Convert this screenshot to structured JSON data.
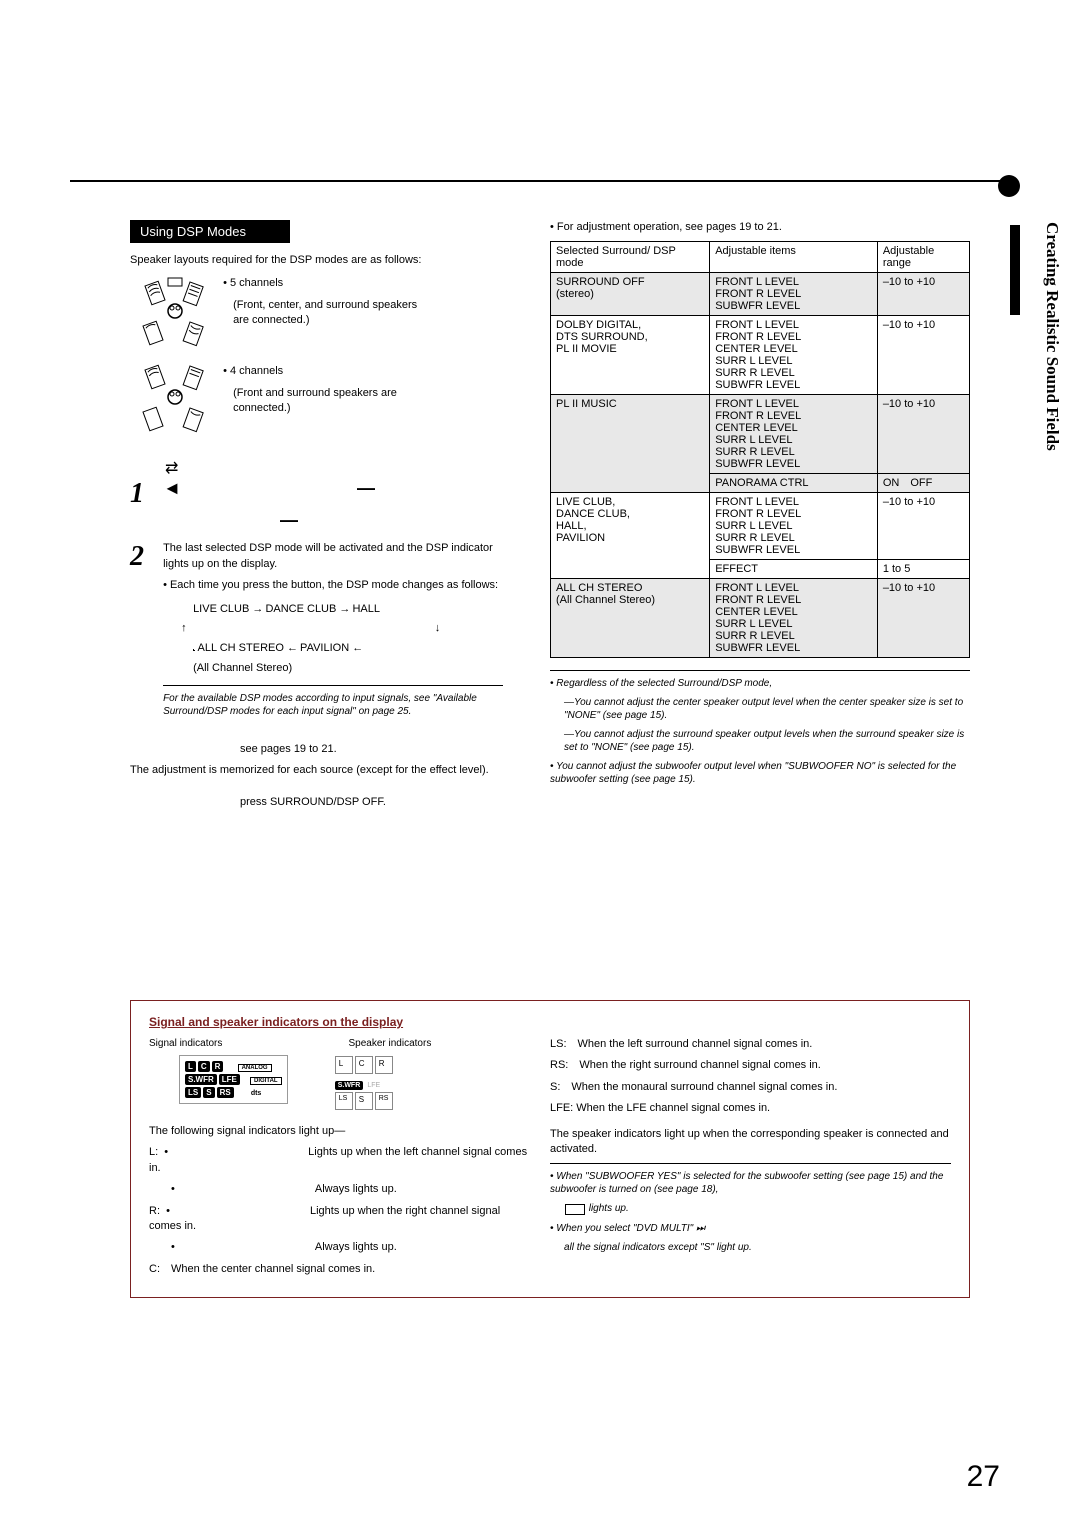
{
  "side_tab": "Creating Realistic Sound Fields",
  "page_number": "27",
  "section_title": "Using DSP Modes",
  "intro": "Speaker layouts required for the DSP modes are as follows:",
  "layout5_title": "• 5 channels",
  "layout5_desc": "(Front, center, and surround speakers are connected.)",
  "layout4_title": "• 4 channels",
  "layout4_desc": "(Front and surround speakers are connected.)",
  "step1_num": "1",
  "step1_arrow": "◄",
  "step1_dash": "—",
  "step2_num": "2",
  "step2_p1": "The last selected DSP mode will be activated and the DSP indicator lights up on the display.",
  "step2_p2": "• Each time you press the button, the DSP mode changes as follows:",
  "flow_line1a": "LIVE CLUB",
  "flow_line1b": "DANCE CLUB",
  "flow_line1c": "HALL",
  "flow_line2a": "ALL CH STEREO",
  "flow_line2b": "PAVILION",
  "flow_line2_sub": "(All Channel Stereo)",
  "note1": "For the available DSP modes according to input signals, see \"Available Surround/DSP modes for each input signal\" on page 25.",
  "adjust_line": "see pages 19 to 21.",
  "adjust_p": "The adjustment is memorized for each source (except for the effect level).",
  "cancel_p": "press SURROUND/DSP OFF.",
  "right_intro": "• For adjustment operation, see pages 19 to 21.",
  "th1": "Selected Surround/ DSP mode",
  "th2": "Adjustable items",
  "th3": "Adjustable range",
  "rows": [
    {
      "m": "SURROUND OFF\n(stereo)",
      "i": "FRONT L LEVEL\nFRONT R LEVEL\nSUBWFR LEVEL",
      "r": "–10 to +10",
      "s": true
    },
    {
      "m": "DOLBY DIGITAL,\nDTS SURROUND,\nPL II MOVIE",
      "i": "FRONT L LEVEL\nFRONT R LEVEL\nCENTER LEVEL\nSURR L LEVEL\nSURR R LEVEL\nSUBWFR LEVEL",
      "r": "–10 to +10",
      "s": false
    },
    {
      "m": "PL II MUSIC",
      "i": "FRONT L LEVEL\nFRONT R LEVEL\nCENTER LEVEL\nSURR L LEVEL\nSURR R LEVEL\nSUBWFR LEVEL",
      "r": "–10 to +10",
      "s": true
    },
    {
      "m": "",
      "i": "PANORAMA CTRL",
      "r": "ON OFF",
      "s": true,
      "bt": true
    },
    {
      "m": "LIVE CLUB,\nDANCE CLUB,\nHALL,\nPAVILION",
      "i": "FRONT L LEVEL\nFRONT R LEVEL\nSURR L LEVEL\nSURR R LEVEL\nSUBWFR LEVEL",
      "r": "–10 to +10",
      "s": false
    },
    {
      "m": "",
      "i": "EFFECT",
      "r": "1 to 5",
      "s": false,
      "bt": true
    },
    {
      "m": "ALL CH STEREO\n(All Channel Stereo)",
      "i": "FRONT L LEVEL\nFRONT R LEVEL\nCENTER LEVEL\nSURR L LEVEL\nSURR R LEVEL\nSUBWFR LEVEL",
      "r": "–10 to +10",
      "s": true
    }
  ],
  "rnote1": "• Regardless of the selected Surround/DSP mode,",
  "rnote1a": "—You cannot adjust the center speaker output level when the center speaker size is set to \"NONE\" (see page 15).",
  "rnote1b": "—You cannot adjust the surround speaker output levels when the surround speaker size is set to \"NONE\" (see page 15).",
  "rnote2": "• You cannot adjust the subwoofer output level when \"SUBWOOFER NO\" is selected for the subwoofer setting (see page 15).",
  "box_title": "Signal and speaker indicators on the display",
  "box_sig_label": "Signal indicators",
  "box_spk_label": "Speaker indicators",
  "box_follow": "The following signal indicators light up—",
  "box_L1": "L:",
  "box_L1a": "Lights up when the left channel signal comes in.",
  "box_L1b": "Always lights up.",
  "box_R1": "R:",
  "box_R1a": "Lights up when the right channel signal comes in.",
  "box_R1b": "Always lights up.",
  "box_C": "C: When the center channel signal comes in.",
  "box_LS": "LS: When the left surround channel signal comes in.",
  "box_RS": "RS: When the right surround channel signal comes in.",
  "box_S": "S: When the monaural surround channel signal comes in.",
  "box_LFE": "LFE: When the LFE channel signal comes in.",
  "box_spk_p": "The speaker indicators light up when the corresponding speaker is connected and activated.",
  "box_note1": "• When \"SUBWOOFER YES\" is selected for the subwoofer setting (see page 15) and the subwoofer is turned on (see page 18),",
  "box_note1a": "lights up.",
  "box_note2a": "• When you select \"DVD MULTI\" ",
  "box_note2b": "all the signal indicators except \"S\" light up.",
  "badges": {
    "L": "L",
    "C": "C",
    "R": "R",
    "SWFR": "S.WFR",
    "LFE": "LFE",
    "LS": "LS",
    "S": "S",
    "RS": "RS"
  }
}
